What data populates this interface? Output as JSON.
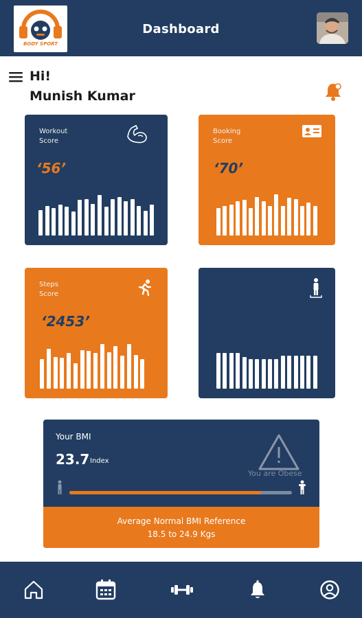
{
  "header": {
    "title": "Dashboard",
    "logo_text": "BODY SPORT",
    "logo_icon": "headphone-mascot-logo",
    "avatar_icon": "user-avatar"
  },
  "greeting": {
    "hi": "Hi!",
    "name": "Munish Kumar"
  },
  "colors": {
    "navy": "#223d61",
    "orange": "#e8791d",
    "white": "#ffffff"
  },
  "cards": [
    {
      "label_line1": "Workout",
      "label_line2": "Score",
      "value": "‘56’",
      "icon": "flexed-arm-icon",
      "bar_levels": [
        0.52,
        0.6,
        0.56,
        0.62,
        0.58,
        0.48,
        0.72,
        0.74,
        0.64,
        0.82,
        0.58,
        0.74,
        0.78,
        0.7,
        0.74,
        0.6,
        0.5,
        0.62
      ]
    },
    {
      "label_line1": "Booking",
      "label_line2": "Score",
      "value": "‘70’",
      "icon": "id-card-icon",
      "bar_levels": [
        0.56,
        0.6,
        0.62,
        0.7,
        0.72,
        0.56,
        0.78,
        0.7,
        0.6,
        0.84,
        0.6,
        0.76,
        0.74,
        0.6,
        0.66,
        0.6
      ]
    },
    {
      "label_line1": "Steps",
      "label_line2": "Score",
      "value": "‘2453’",
      "icon": "running-person-icon",
      "bar_levels": [
        0.6,
        0.8,
        0.64,
        0.62,
        0.72,
        0.52,
        0.78,
        0.76,
        0.72,
        0.9,
        0.74,
        0.86,
        0.66,
        0.9,
        0.68,
        0.6
      ]
    },
    {
      "label_line1": "",
      "label_line2": "",
      "value": "",
      "icon": "standing-person-icon",
      "bar_levels": [
        0.72,
        0.72,
        0.72,
        0.72,
        0.64,
        0.6,
        0.6,
        0.6,
        0.6,
        0.6,
        0.66,
        0.66,
        0.66,
        0.66,
        0.66,
        0.66
      ]
    }
  ],
  "bmi": {
    "title": "Your BMI",
    "value": "23.7",
    "unit": "Index",
    "status": "You are Obese",
    "progress": 0.86,
    "reference_line1": "Average Normal BMI Reference",
    "reference_line2": "18.5 to 24.9 Kgs"
  },
  "bottom_nav": [
    {
      "name": "home",
      "icon": "home-icon"
    },
    {
      "name": "calendar",
      "icon": "calendar-icon"
    },
    {
      "name": "workout",
      "icon": "dumbbell-icon"
    },
    {
      "name": "notifications",
      "icon": "bell-icon"
    },
    {
      "name": "profile",
      "icon": "profile-icon"
    }
  ]
}
